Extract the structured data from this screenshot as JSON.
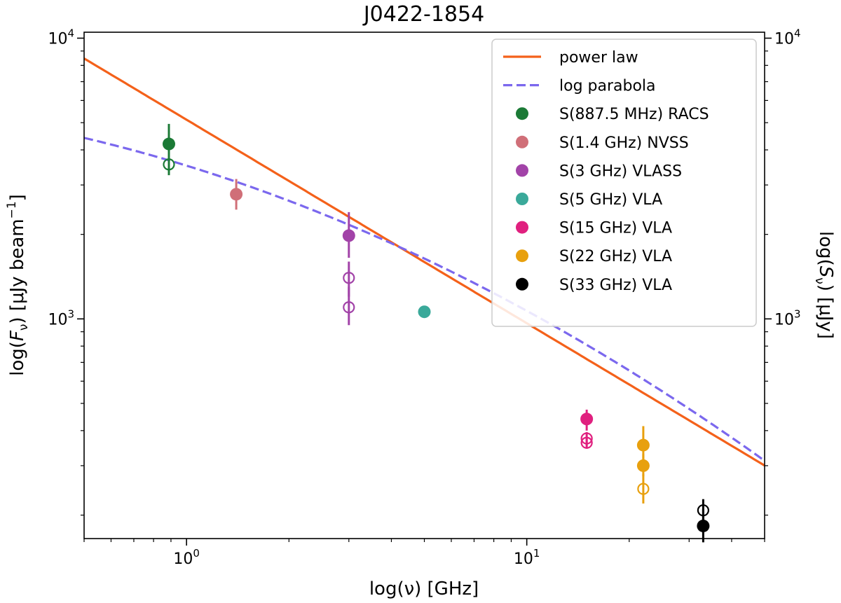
{
  "chart_data": {
    "type": "scatter",
    "title": "J0422-1854",
    "xlabel": "log(ν) [GHz]",
    "ylabel_left": "log(F_ν) [μJy beam^-1]",
    "ylabel_right": "log(S_ν) [μJy]",
    "x_scale": "log",
    "y_scale": "log",
    "xlim": [
      0.5,
      50
    ],
    "ylim": [
      165,
      10500
    ],
    "x_major_ticks": [
      {
        "value": 1,
        "base": "10",
        "exp": "0"
      },
      {
        "value": 10,
        "base": "10",
        "exp": "1"
      }
    ],
    "y_major_ticks": [
      {
        "value": 1000,
        "base": "10",
        "exp": "3"
      },
      {
        "value": 10000,
        "base": "10",
        "exp": "4"
      }
    ],
    "legend_position": "top-right",
    "fits": [
      {
        "name": "power law",
        "style": "solid",
        "color": "#f4611a",
        "amplitude": 1595,
        "index": -0.725
      },
      {
        "name": "log parabola",
        "style": "dashed",
        "color": "#7b68ee",
        "amplitude": 1640,
        "alpha": -0.575,
        "beta": -0.145
      }
    ],
    "series": [
      {
        "name": "S(887.5 MHz) RACS",
        "color": "#1b7a36",
        "points": [
          {
            "x": 0.8875,
            "y": 4200,
            "err": [
              3850,
              4950
            ],
            "filled": true
          },
          {
            "x": 0.8875,
            "y": 3550,
            "err": [
              3250,
              3900
            ],
            "filled": false
          }
        ]
      },
      {
        "name": "S(1.4 GHz) NVSS",
        "color": "#d06f78",
        "points": [
          {
            "x": 1.4,
            "y": 2780,
            "err": [
              2450,
              3150
            ],
            "filled": true
          }
        ]
      },
      {
        "name": "S(3 GHz) VLASS",
        "color": "#a243a8",
        "points": [
          {
            "x": 3.0,
            "y": 1980,
            "err": [
              1650,
              2400
            ],
            "filled": true
          },
          {
            "x": 3.0,
            "y": 1400,
            "err": [
              1200,
              1600
            ],
            "filled": false
          },
          {
            "x": 3.0,
            "y": 1100,
            "err": [
              950,
              1300
            ],
            "filled": false
          }
        ]
      },
      {
        "name": "S(5 GHz) VLA",
        "color": "#3aa99a",
        "points": [
          {
            "x": 5.0,
            "y": 1060,
            "err": null,
            "filled": true
          }
        ]
      },
      {
        "name": "S(15 GHz) VLA",
        "color": "#e0207f",
        "points": [
          {
            "x": 15.0,
            "y": 440,
            "err": [
              400,
              475
            ],
            "filled": true
          },
          {
            "x": 15.0,
            "y": 375,
            "err": [
              355,
              395
            ],
            "filled": false
          },
          {
            "x": 15.0,
            "y": 362,
            "err": [
              345,
              380
            ],
            "filled": false
          }
        ]
      },
      {
        "name": "S(22 GHz) VLA",
        "color": "#e8a00e",
        "points": [
          {
            "x": 22.0,
            "y": 355,
            "err": [
              310,
              415
            ],
            "filled": true
          },
          {
            "x": 22.0,
            "y": 300,
            "err": [
              275,
              330
            ],
            "filled": true
          },
          {
            "x": 22.0,
            "y": 248,
            "err": [
              220,
              280
            ],
            "filled": false
          }
        ]
      },
      {
        "name": "S(33 GHz) VLA",
        "color": "#000000",
        "points": [
          {
            "x": 33.0,
            "y": 208,
            "err": [
              190,
              228
            ],
            "filled": false
          },
          {
            "x": 33.0,
            "y": 183,
            "err": [
              160,
              210
            ],
            "filled": true
          }
        ]
      }
    ]
  }
}
